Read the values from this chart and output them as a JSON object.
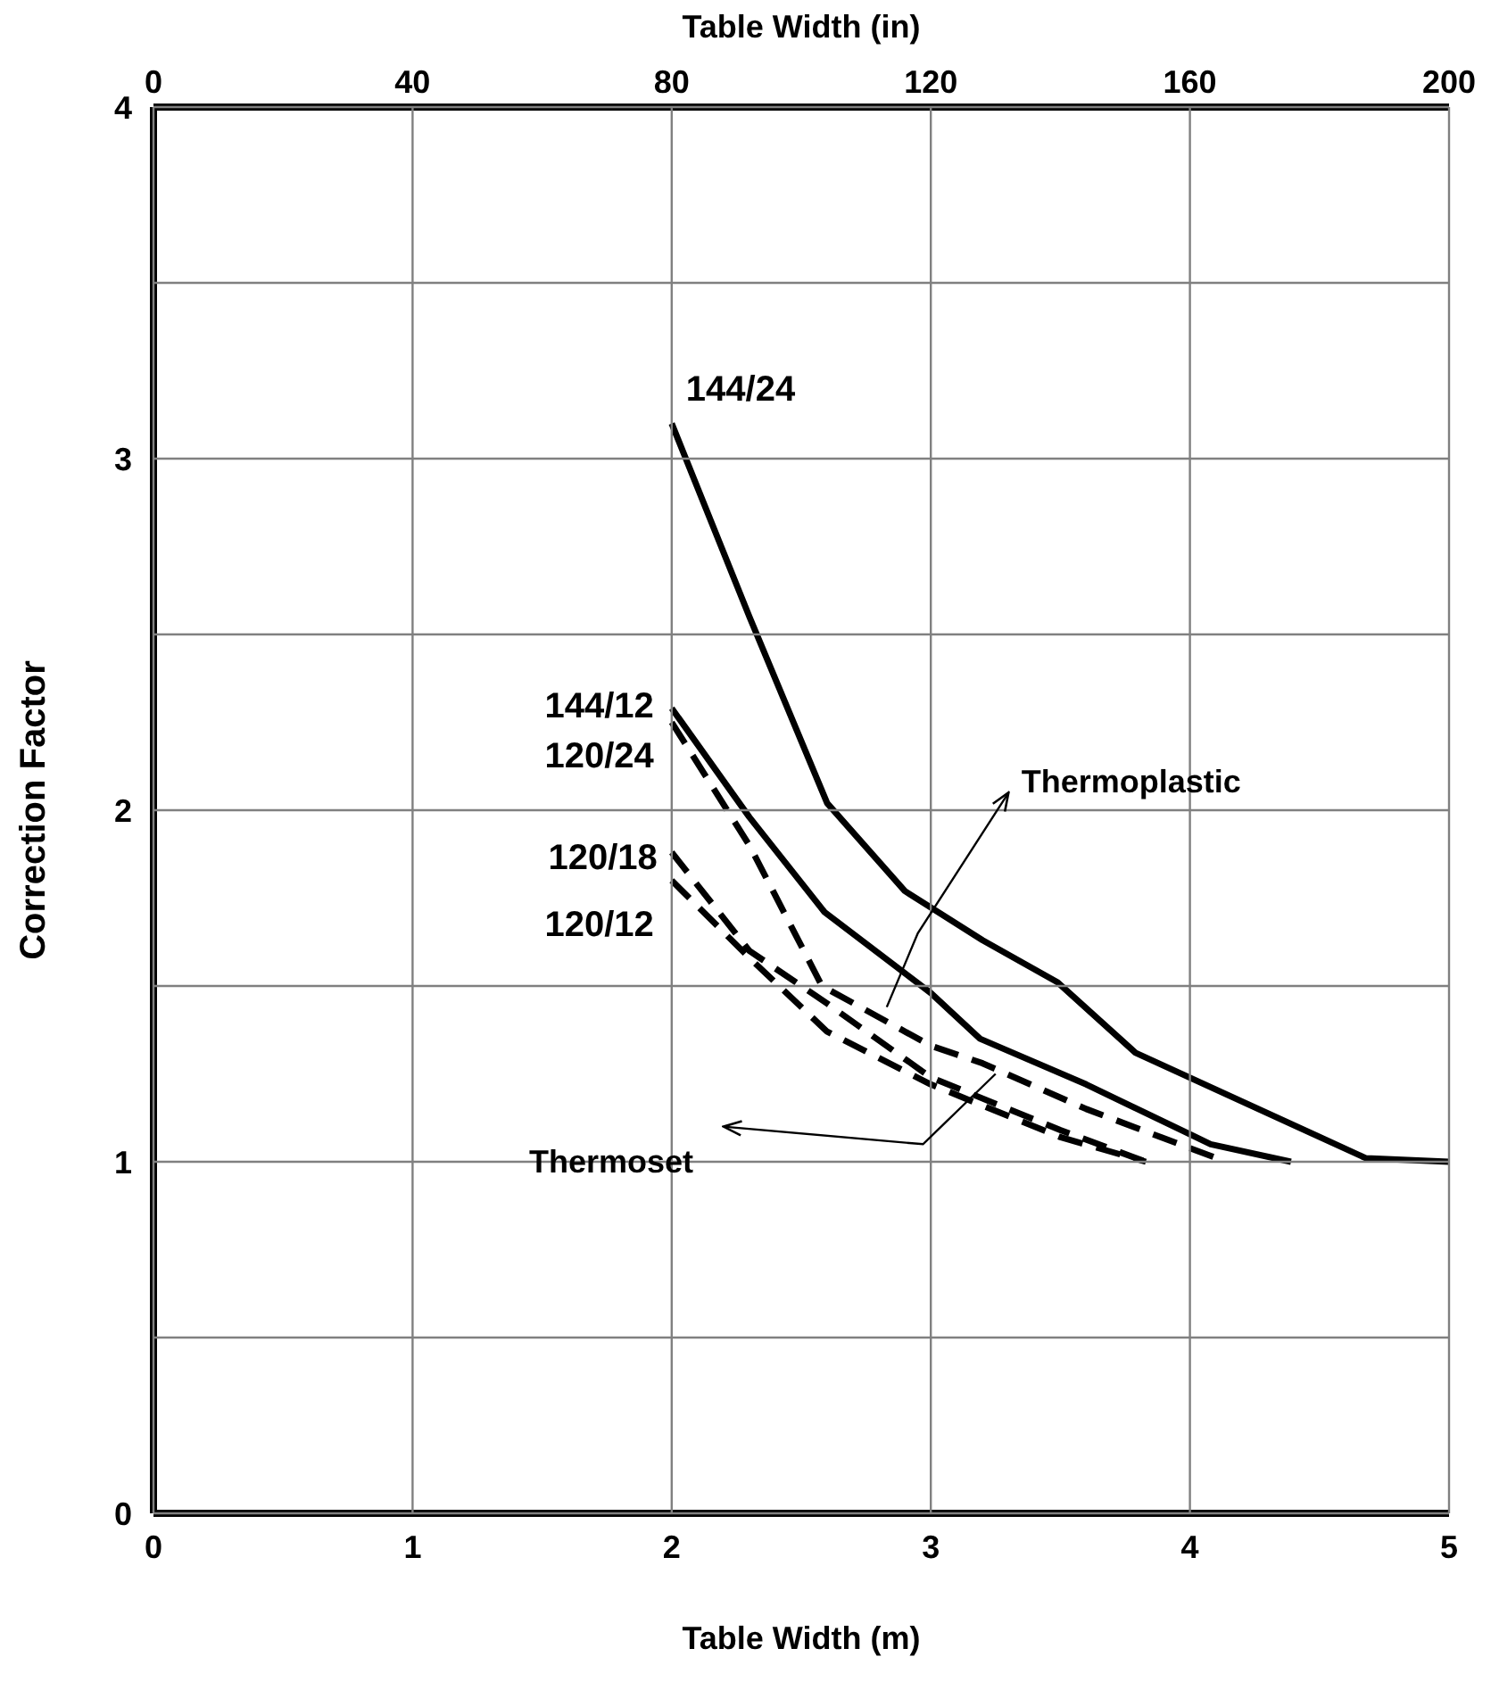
{
  "chart_data": {
    "type": "line",
    "xlabel": "Table Width (m)",
    "x2label": "Table Width (in)",
    "ylabel": "Correction Factor",
    "xlim": [
      0,
      5
    ],
    "xticks": [
      0,
      1,
      2,
      3,
      4,
      5
    ],
    "x2lim": [
      0,
      200
    ],
    "x2ticks": [
      0,
      40,
      80,
      120,
      160,
      200
    ],
    "ylim": [
      0,
      4
    ],
    "yticks": [
      0,
      {
        "value": 0.5,
        "label": null
      },
      1,
      {
        "value": 1.5,
        "label": null
      },
      2,
      {
        "value": 2.5,
        "label": null
      },
      3,
      {
        "value": 3.5,
        "label": null
      },
      4
    ],
    "grid": true,
    "legend": false,
    "marker": "none",
    "series": [
      {
        "name": "144/24",
        "color": "#000000",
        "line_style": "solid",
        "x": [
          2,
          2.3,
          2.6,
          2.9,
          3.2,
          3.49,
          3.79,
          4.68,
          5
        ],
        "values": [
          3.1,
          2.55,
          2.02,
          1.77,
          1.63,
          1.51,
          1.31,
          1.01,
          1.0
        ]
      },
      {
        "name": "144/12",
        "color": "#000000",
        "line_style": "solid",
        "x": [
          2,
          2.3,
          2.59,
          3.0,
          3.19,
          3.6,
          4.08,
          4.39
        ],
        "values": [
          2.29,
          1.98,
          1.71,
          1.48,
          1.35,
          1.22,
          1.05,
          1.0
        ]
      },
      {
        "name": "120/24",
        "color": "#000000",
        "line_style": "dashed",
        "x": [
          2,
          2.3,
          2.58,
          3.0,
          3.2,
          3.6,
          4.14
        ],
        "values": [
          2.25,
          1.9,
          1.5,
          1.33,
          1.28,
          1.15,
          1.0
        ]
      },
      {
        "name": "120/18",
        "color": "#000000",
        "line_style": "dashed",
        "x": [
          2,
          2.3,
          2.6,
          3.0,
          3.5,
          3.83
        ],
        "values": [
          1.88,
          1.6,
          1.45,
          1.24,
          1.09,
          1.0
        ]
      },
      {
        "name": "120/12",
        "color": "#000000",
        "line_style": "dashed",
        "x": [
          2,
          2.3,
          2.6,
          3.0,
          3.5,
          3.83
        ],
        "values": [
          1.8,
          1.58,
          1.37,
          1.22,
          1.07,
          1.0
        ]
      }
    ],
    "annotations": [
      "Thermoplastic",
      "Thermoset"
    ]
  }
}
